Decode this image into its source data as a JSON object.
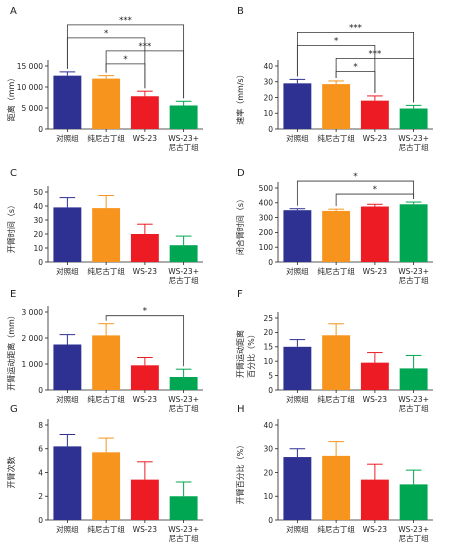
{
  "chart_data": [
    {
      "panel": "A",
      "type": "bar",
      "ylabel": "距离（mm）",
      "ylim": [
        0,
        15000
      ],
      "yticks": [
        0,
        5000,
        10000,
        15000
      ],
      "ytick_labels": [
        "0",
        "5 000",
        "10 000",
        "15 000"
      ],
      "categories": [
        "对照组",
        "纯尼古丁组",
        "WS-23",
        "WS-23+\n尼古丁组"
      ],
      "values": [
        12700,
        12000,
        7800,
        5600
      ],
      "errors": [
        900,
        700,
        1200,
        1000
      ],
      "significance": [
        {
          "from": 0,
          "to": 3,
          "label": "***"
        },
        {
          "from": 1,
          "to": 3,
          "label": "***"
        },
        {
          "from": 0,
          "to": 2,
          "label": "*"
        },
        {
          "from": 1,
          "to": 2,
          "label": "*"
        }
      ]
    },
    {
      "panel": "B",
      "type": "bar",
      "ylabel": "速率（mm/s）",
      "ylim": [
        0,
        40
      ],
      "yticks": [
        0,
        10,
        20,
        30,
        40
      ],
      "ytick_labels": [
        "0",
        "10",
        "20",
        "30",
        "40"
      ],
      "categories": [
        "对照组",
        "纯尼古丁组",
        "WS-23",
        "WS-23+\n尼古丁组"
      ],
      "values": [
        29,
        28.5,
        18,
        13
      ],
      "errors": [
        2.5,
        2,
        3,
        2
      ],
      "significance": [
        {
          "from": 0,
          "to": 3,
          "label": "***"
        },
        {
          "from": 1,
          "to": 3,
          "label": "***"
        },
        {
          "from": 0,
          "to": 2,
          "label": "*"
        },
        {
          "from": 1,
          "to": 2,
          "label": "*"
        }
      ]
    },
    {
      "panel": "C",
      "type": "bar",
      "ylabel": "开臂时间（s）",
      "ylim": [
        0,
        50
      ],
      "yticks": [
        0,
        10,
        20,
        30,
        40,
        50
      ],
      "ytick_labels": [
        "0",
        "10",
        "20",
        "30",
        "40",
        "50"
      ],
      "categories": [
        "对照组",
        "纯尼古丁组",
        "WS-23",
        "WS-23+\n尼古丁组"
      ],
      "values": [
        39,
        38.5,
        20,
        12
      ],
      "errors": [
        7,
        9,
        7,
        6.5
      ],
      "significance": []
    },
    {
      "panel": "D",
      "type": "bar",
      "ylabel": "闭合臂时间（s）",
      "ylim": [
        0,
        500
      ],
      "yticks": [
        0,
        100,
        200,
        300,
        400,
        500
      ],
      "ytick_labels": [
        "0",
        "100",
        "200",
        "300",
        "400",
        "500"
      ],
      "categories": [
        "对照组",
        "纯尼古丁组",
        "WS-23",
        "WS-23+\n尼古丁组"
      ],
      "values": [
        350,
        345,
        375,
        390
      ],
      "errors": [
        10,
        12,
        15,
        15
      ],
      "significance": [
        {
          "from": 0,
          "to": 3,
          "label": "*"
        },
        {
          "from": 1,
          "to": 3,
          "label": "*"
        }
      ]
    },
    {
      "panel": "E",
      "type": "bar",
      "ylabel": "开臂运动距离（mm）",
      "ylim": [
        0,
        3000
      ],
      "yticks": [
        0,
        1000,
        2000,
        3000
      ],
      "ytick_labels": [
        "0",
        "1 000",
        "2 000",
        "3 000"
      ],
      "categories": [
        "对照组",
        "纯尼古丁组",
        "WS-23",
        "WS-23+\n尼古丁组"
      ],
      "values": [
        1750,
        2100,
        950,
        500
      ],
      "errors": [
        380,
        450,
        300,
        300
      ],
      "significance": [
        {
          "from": 1,
          "to": 3,
          "label": "*"
        }
      ]
    },
    {
      "panel": "F",
      "type": "bar",
      "ylabel": "开臂运动距离\n百分比（%）",
      "ylim": [
        0,
        25
      ],
      "yticks": [
        0,
        5,
        10,
        15,
        20,
        25
      ],
      "ytick_labels": [
        "0",
        "5",
        "10",
        "15",
        "20",
        "25"
      ],
      "categories": [
        "对照组",
        "纯尼古丁组",
        "WS-23",
        "WS-23+\n尼古丁组"
      ],
      "values": [
        15,
        19,
        9.5,
        7.5
      ],
      "errors": [
        2.5,
        4,
        3.5,
        4.5
      ],
      "significance": []
    },
    {
      "panel": "G",
      "type": "bar",
      "ylabel": "开臂次数",
      "ylim": [
        0,
        8
      ],
      "yticks": [
        0,
        2,
        4,
        6,
        8
      ],
      "ytick_labels": [
        "0",
        "2",
        "4",
        "6",
        "8"
      ],
      "categories": [
        "对照组",
        "纯尼古丁组",
        "WS-23",
        "WS-23+\n尼古丁组"
      ],
      "values": [
        6.2,
        5.7,
        3.4,
        2.0
      ],
      "errors": [
        1.0,
        1.2,
        1.5,
        1.2
      ],
      "significance": []
    },
    {
      "panel": "H",
      "type": "bar",
      "ylabel": "开臂百分比（%）",
      "ylim": [
        0,
        40
      ],
      "yticks": [
        0,
        10,
        20,
        30,
        40
      ],
      "ytick_labels": [
        "0",
        "10",
        "20",
        "30",
        "40"
      ],
      "categories": [
        "对照组",
        "纯尼古丁组",
        "WS-23",
        "WS-23+\n尼古丁组"
      ],
      "values": [
        26.5,
        27,
        17,
        15
      ],
      "errors": [
        3.5,
        6,
        6.5,
        6
      ],
      "significance": []
    }
  ],
  "colors": {
    "bars": [
      "#2e3192",
      "#f7941d",
      "#ed1c24",
      "#00a651"
    ],
    "errors": [
      "#2e3192",
      "#f7941d",
      "#ed1c24",
      "#00a651"
    ]
  }
}
